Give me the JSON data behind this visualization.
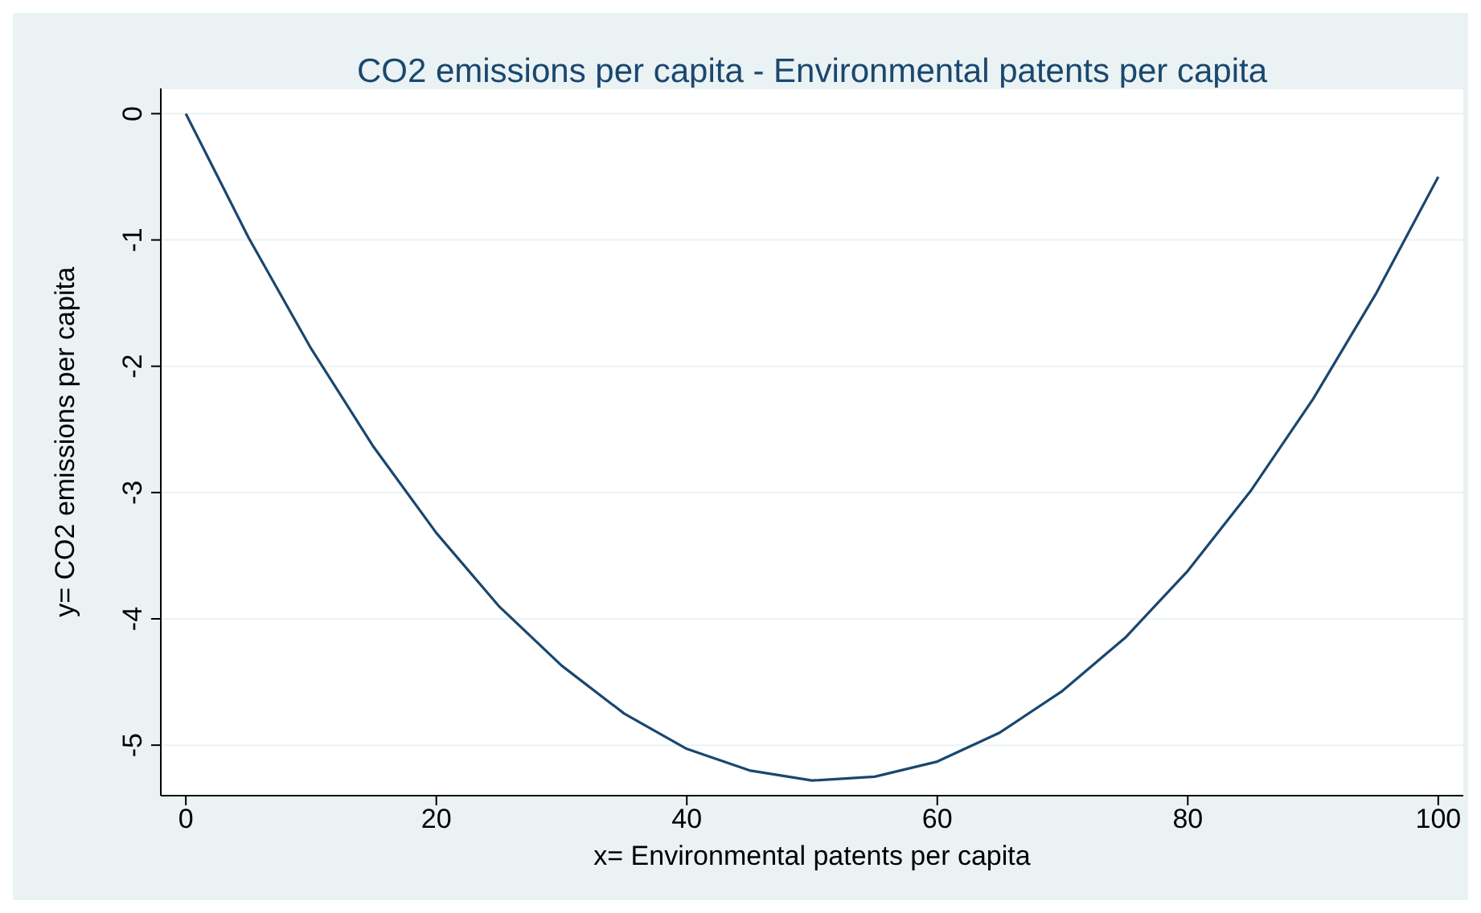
{
  "chart_data": {
    "type": "line",
    "title": "CO2 emissions per capita - Environmental patents per capita",
    "xlabel": "x= Environmental patents per capita",
    "ylabel": "y= CO2 emissions per capita",
    "x": [
      0,
      5,
      10,
      15,
      20,
      25,
      30,
      35,
      40,
      45,
      50,
      55,
      60,
      65,
      70,
      75,
      80,
      85,
      90,
      95,
      100
    ],
    "series": [
      {
        "color": "#1a476f",
        "values": [
          0,
          -0.98,
          -1.86,
          -2.64,
          -3.32,
          -3.9,
          -4.37,
          -4.75,
          -5.03,
          -5.2,
          -5.28,
          -5.25,
          -5.13,
          -4.9,
          -4.57,
          -4.15,
          -3.62,
          -2.99,
          -2.26,
          -1.43,
          -0.5
        ]
      }
    ],
    "xlim": [
      -2,
      102
    ],
    "xticks": [
      0,
      20,
      40,
      60,
      80,
      100
    ],
    "ylim": [
      -5.4,
      0.2
    ],
    "yticks": [
      -5,
      -4,
      -3,
      -2,
      -1,
      0
    ],
    "grid": "y",
    "marker": "none",
    "line_style": "solid"
  }
}
